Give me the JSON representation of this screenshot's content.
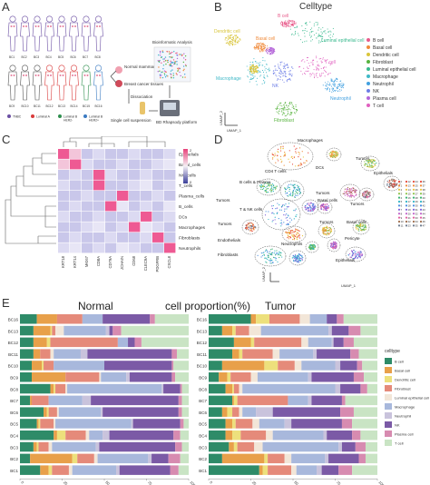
{
  "panel_labels": {
    "a": "A",
    "b": "B",
    "c": "C",
    "d": "D",
    "e": "E"
  },
  "panel_a": {
    "figure_ids_row1": [
      "BC1",
      "BC2",
      "BC3",
      "BC4",
      "BC5",
      "BC6",
      "BC7",
      "BC8"
    ],
    "figure_ids_row2": [
      "BC9",
      "BC10",
      "BC11",
      "BC12",
      "BC13",
      "BC14",
      "BC15",
      "BC16"
    ],
    "legend": [
      {
        "label": "TNBC",
        "color": "#6b4fa3"
      },
      {
        "label": "Luminal A",
        "color": "#d93b3b"
      },
      {
        "label": "Luminal B HER2-",
        "color": "#2f8f4f"
      },
      {
        "label": "Luminal B HER2+",
        "color": "#3a7ac2"
      }
    ],
    "flow": {
      "normal": "Normal mammary gland",
      "tumor": "Breast cancer tissues",
      "dissociation": "Dissociation",
      "single_cell": "Single cell suspension",
      "platform": "BD Rhapsody platform",
      "bioinformatic": "Bioinformatic Analysis"
    }
  },
  "panel_b": {
    "title": "Celltype",
    "axis_x": "UMAP_1",
    "axis_y": "UMAP_2",
    "legend": [
      {
        "label": "B cell",
        "color": "#e85b8b"
      },
      {
        "label": "Basal cell",
        "color": "#f08a3a"
      },
      {
        "label": "Dendritic cell",
        "color": "#d9c53b"
      },
      {
        "label": "Fibroblast",
        "color": "#58b33f"
      },
      {
        "label": "Luminal epithelial cell",
        "color": "#39b98e"
      },
      {
        "label": "Macrophage",
        "color": "#3fb8c7"
      },
      {
        "label": "Neutrophil",
        "color": "#42a0e0"
      },
      {
        "label": "NK",
        "color": "#6c7de6"
      },
      {
        "label": "Plasma cell",
        "color": "#b466d9"
      },
      {
        "label": "T cell",
        "color": "#e05fbf"
      }
    ],
    "cluster_labels": {
      "bcell": "B cell",
      "dendritic": "Dendritic cell",
      "basal": "Basal cell",
      "luminal": "Luminal epithelial cell",
      "macrophage": "Macrophage",
      "nk": "NK",
      "tcell": "T cell",
      "neutrophil": "Neutrophil",
      "fibroblast": "Fibroblast"
    }
  },
  "panel_c": {
    "rows": [
      "Epithelials",
      "Basal_cells",
      "NK_cells",
      "T_cells",
      "Plasma_cells",
      "B_cells",
      "DCs",
      "Macrophages",
      "Fibroblasts",
      "Neutrophils"
    ],
    "cols": [
      "KRT18",
      "KRT14",
      "MKI67",
      "CD8A",
      "CD79A",
      "JCHAIN",
      "CD68",
      "CLEC9A",
      "PDGFRB",
      "CXCL8"
    ],
    "colorbar": [
      "2",
      "0"
    ]
  },
  "panel_d": {
    "axis_x": "UMAP_1",
    "axis_y": "UMAP_2",
    "labels": {
      "macrophages": "Macrophages",
      "cd4": "CD4 T cells",
      "dcs": "DCs",
      "tumors_top": "Tumors",
      "bplasma": "B cells & Plasma",
      "tumors_left": "Tumors",
      "tumors_mid": "Tumors",
      "epithelials_r": "Epithelials",
      "tnk": "T & NK cells",
      "basal_cells": "Basal cells",
      "tumors_right": "Tumors",
      "tumors_left2": "Tumors",
      "endothelials": "Endothelials",
      "tumors_center": "Tumors",
      "basal_lower": "Basal cells",
      "pericyte": "Pericyte",
      "neutrophils": "Neutrophils",
      "fibroblasts": "Fibroblasts",
      "epithelials_b": "Epithelials"
    },
    "cluster_ids": [
      "0",
      "1",
      "2",
      "3",
      "4",
      "5",
      "6",
      "7",
      "8",
      "9",
      "10",
      "11",
      "12",
      "13",
      "14",
      "15",
      "16",
      "17",
      "18",
      "19",
      "20",
      "21",
      "22",
      "23",
      "24",
      "25",
      "26",
      "27",
      "28",
      "29",
      "30",
      "31",
      "32",
      "33",
      "34",
      "35",
      "36",
      "37",
      "38",
      "39",
      "40",
      "41",
      "42",
      "43",
      "44",
      "45",
      "46",
      "47"
    ]
  },
  "panel_e": {
    "title": "cell proportion(%)",
    "normal_title": "Normal",
    "tumor_title": "Tumor",
    "legend_title": "celltype",
    "ticks": [
      "0",
      "25",
      "50",
      "75",
      "100"
    ],
    "samples": [
      "BC16",
      "BC13",
      "BC12",
      "BC11",
      "BC10",
      "BC9",
      "BC8",
      "BC7",
      "BC6",
      "BC5",
      "BC4",
      "BC3",
      "BC2",
      "BC1"
    ],
    "celltypes": [
      {
        "label": "B cell",
        "color": "#2e8b68"
      },
      {
        "label": "Basal cell",
        "color": "#e8a04a"
      },
      {
        "label": "Dendritic cell",
        "color": "#ede07c"
      },
      {
        "label": "Fibroblast",
        "color": "#e58a7a"
      },
      {
        "label": "Luminal epithelial cell",
        "color": "#f2e6d8"
      },
      {
        "label": "Macrophage",
        "color": "#a8b8dc"
      },
      {
        "label": "Neutrophil",
        "color": "#c9c3dc"
      },
      {
        "label": "NK",
        "color": "#7b5aa6"
      },
      {
        "label": "Plasma cell",
        "color": "#d78bb0"
      },
      {
        "label": "T cell",
        "color": "#c9e4c4"
      }
    ],
    "normal": [
      [
        10,
        12,
        0,
        15,
        0,
        12,
        0,
        28,
        3,
        20
      ],
      [
        8,
        10,
        1,
        2,
        5,
        25,
        2,
        2,
        5,
        40
      ],
      [
        8,
        8,
        2,
        40,
        0,
        6,
        0,
        4,
        4,
        28
      ],
      [
        8,
        4,
        0,
        6,
        2,
        16,
        4,
        50,
        3,
        7
      ],
      [
        7,
        6,
        1,
        6,
        0,
        30,
        0,
        40,
        1,
        9
      ],
      [
        7,
        20,
        0,
        20,
        1,
        15,
        2,
        25,
        2,
        8
      ],
      [
        18,
        2,
        1,
        6,
        1,
        56,
        1,
        10,
        1,
        4
      ],
      [
        6,
        1,
        0,
        10,
        0,
        20,
        5,
        52,
        2,
        4
      ],
      [
        14,
        2,
        1,
        5,
        1,
        25,
        1,
        45,
        2,
        4
      ],
      [
        10,
        1,
        1,
        8,
        1,
        45,
        1,
        28,
        2,
        3
      ],
      [
        20,
        2,
        5,
        12,
        2,
        8,
        4,
        38,
        4,
        5
      ],
      [
        8,
        2,
        1,
        6,
        2,
        26,
        2,
        45,
        4,
        4
      ],
      [
        6,
        25,
        3,
        10,
        2,
        30,
        2,
        10,
        7,
        5
      ],
      [
        12,
        5,
        2,
        10,
        2,
        26,
        2,
        30,
        5,
        6
      ]
    ],
    "tumor": [
      [
        25,
        3,
        8,
        18,
        6,
        10,
        0,
        6,
        4,
        20
      ],
      [
        8,
        6,
        2,
        8,
        7,
        40,
        2,
        10,
        7,
        10
      ],
      [
        15,
        10,
        2,
        28,
        4,
        14,
        1,
        6,
        6,
        14
      ],
      [
        14,
        4,
        2,
        18,
        4,
        20,
        2,
        20,
        5,
        11
      ],
      [
        8,
        25,
        8,
        10,
        4,
        20,
        3,
        10,
        3,
        9
      ],
      [
        6,
        5,
        2,
        12,
        4,
        30,
        2,
        25,
        6,
        8
      ],
      [
        10,
        4,
        1,
        3,
        2,
        55,
        3,
        12,
        4,
        6
      ],
      [
        14,
        1,
        2,
        30,
        0,
        12,
        2,
        18,
        2,
        19
      ],
      [
        8,
        3,
        3,
        4,
        2,
        8,
        10,
        40,
        8,
        14
      ],
      [
        10,
        4,
        2,
        10,
        4,
        15,
        4,
        30,
        6,
        15
      ],
      [
        10,
        4,
        5,
        15,
        4,
        30,
        2,
        15,
        5,
        10
      ],
      [
        12,
        3,
        2,
        10,
        5,
        45,
        2,
        8,
        6,
        7
      ],
      [
        8,
        25,
        2,
        10,
        4,
        20,
        2,
        18,
        4,
        7
      ],
      [
        30,
        2,
        3,
        14,
        3,
        12,
        3,
        10,
        8,
        15
      ]
    ]
  }
}
